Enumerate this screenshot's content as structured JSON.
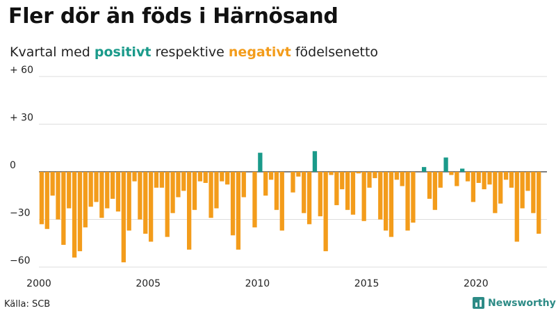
{
  "header": {
    "title": "Fler dör än föds i Härnösand",
    "subtitle_pre": "Kvartal med ",
    "subtitle_pos": "positivt",
    "subtitle_mid": " respektive ",
    "subtitle_neg": "negativt",
    "subtitle_post": " födelsenetto"
  },
  "footer": {
    "source": "Källa: SCB",
    "brand": "Newsworthy"
  },
  "colors": {
    "positive": "#1a9a8a",
    "negative": "#f39c1b",
    "grid": "#dddddd",
    "zero": "#333333"
  },
  "chart_data": {
    "type": "bar",
    "title": "Fler dör än föds i Härnösand",
    "ylim": [
      -60,
      60
    ],
    "y_ticks": [
      60,
      30,
      0,
      -30,
      -60
    ],
    "y_tick_labels": [
      "+ 60",
      "+ 30",
      "0",
      "−30",
      "−60"
    ],
    "x_tick_labels": [
      "2000",
      "2005",
      "2010",
      "2015",
      "2020"
    ],
    "x_tick_years": [
      2000,
      2005,
      2010,
      2015,
      2020
    ],
    "x_range": [
      2000,
      2023.25
    ],
    "grid": true,
    "categories": [
      "2000Q1",
      "2000Q2",
      "2000Q3",
      "2000Q4",
      "2001Q1",
      "2001Q2",
      "2001Q3",
      "2001Q4",
      "2002Q1",
      "2002Q2",
      "2002Q3",
      "2002Q4",
      "2003Q1",
      "2003Q2",
      "2003Q3",
      "2003Q4",
      "2004Q1",
      "2004Q2",
      "2004Q3",
      "2004Q4",
      "2005Q1",
      "2005Q2",
      "2005Q3",
      "2005Q4",
      "2006Q1",
      "2006Q2",
      "2006Q3",
      "2006Q4",
      "2007Q1",
      "2007Q2",
      "2007Q3",
      "2007Q4",
      "2008Q1",
      "2008Q2",
      "2008Q3",
      "2008Q4",
      "2009Q1",
      "2009Q2",
      "2009Q3",
      "2009Q4",
      "2010Q1",
      "2010Q2",
      "2010Q3",
      "2010Q4",
      "2011Q1",
      "2011Q2",
      "2011Q3",
      "2011Q4",
      "2012Q1",
      "2012Q2",
      "2012Q3",
      "2012Q4",
      "2013Q1",
      "2013Q2",
      "2013Q3",
      "2013Q4",
      "2014Q1",
      "2014Q2",
      "2014Q3",
      "2014Q4",
      "2015Q1",
      "2015Q2",
      "2015Q3",
      "2015Q4",
      "2016Q1",
      "2016Q2",
      "2016Q3",
      "2016Q4",
      "2017Q1",
      "2017Q2",
      "2017Q3",
      "2017Q4",
      "2018Q1",
      "2018Q2",
      "2018Q3",
      "2018Q4",
      "2019Q1",
      "2019Q2",
      "2019Q3",
      "2019Q4",
      "2020Q1",
      "2020Q2",
      "2020Q3",
      "2020Q4",
      "2021Q1",
      "2021Q2",
      "2021Q3",
      "2021Q4",
      "2022Q1",
      "2022Q2",
      "2022Q3",
      "2022Q4",
      "2023Q1"
    ],
    "values": [
      -33,
      -36,
      -15,
      -30,
      -46,
      -23,
      -54,
      -50,
      -35,
      -22,
      -19,
      -29,
      -23,
      -17,
      -25,
      -57,
      -37,
      -6,
      -30,
      -39,
      -44,
      -10,
      -10,
      -41,
      -26,
      -16,
      -12,
      -49,
      -24,
      -6,
      -7,
      -29,
      -23,
      -6,
      -8,
      -40,
      -49,
      -16,
      0,
      -35,
      12,
      -15,
      -5,
      -24,
      -37,
      0,
      -13,
      -3,
      -26,
      -33,
      13,
      -28,
      -50,
      -2,
      -21,
      -11,
      -24,
      -27,
      -1,
      -31,
      -10,
      -4,
      -30,
      -37,
      -41,
      -5,
      -9,
      -37,
      -32,
      0,
      3,
      -17,
      -24,
      -10,
      9,
      -2,
      -9,
      2,
      -6,
      -19,
      -7,
      -11,
      -8,
      -26,
      -20,
      -5,
      -10,
      -44,
      -23,
      -12,
      -26,
      -39,
      0
    ]
  }
}
